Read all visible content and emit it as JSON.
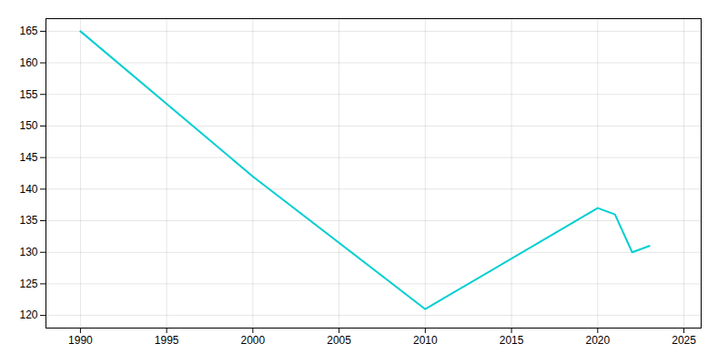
{
  "chart_data": {
    "type": "line",
    "x": [
      1990,
      2000,
      2010,
      2020,
      2021,
      2022,
      2023
    ],
    "values": [
      165,
      142,
      121,
      137,
      136,
      130,
      131
    ],
    "color": "#00CED1",
    "xlim": [
      1988,
      2026
    ],
    "ylim": [
      118,
      167
    ],
    "xticks": [
      1990,
      1995,
      2000,
      2005,
      2010,
      2015,
      2020,
      2025
    ],
    "yticks": [
      120,
      125,
      130,
      135,
      140,
      145,
      150,
      155,
      160,
      165
    ],
    "grid": true
  }
}
